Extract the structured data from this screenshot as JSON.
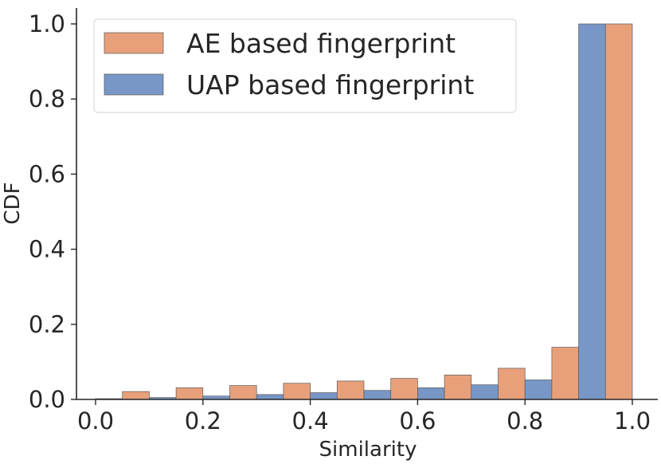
{
  "chart_data": {
    "type": "bar",
    "xlabel": "Similarity",
    "ylabel": "CDF",
    "xlim": [
      -0.02,
      1.02
    ],
    "ylim": [
      0,
      1.05
    ],
    "xticks": [
      "0.0",
      "0.2",
      "0.4",
      "0.6",
      "0.8",
      "1.0"
    ],
    "yticks": [
      "0.0",
      "0.2",
      "0.4",
      "0.6",
      "0.8",
      "1.0"
    ],
    "bin_width": 0.1,
    "bin_starts": [
      0.0,
      0.1,
      0.2,
      0.3,
      0.4,
      0.5,
      0.6,
      0.7,
      0.8,
      0.9
    ],
    "legend_position": "top-left",
    "grid": false,
    "series": [
      {
        "name": "AE based fingerprint",
        "color": "#e8a07a",
        "values": [
          0.021,
          0.031,
          0.037,
          0.043,
          0.049,
          0.056,
          0.065,
          0.083,
          0.139,
          1.0
        ]
      },
      {
        "name": "UAP based fingerprint",
        "color": "#7896c6",
        "values": [
          0.002,
          0.005,
          0.009,
          0.013,
          0.018,
          0.024,
          0.031,
          0.039,
          0.052,
          1.0
        ]
      }
    ]
  }
}
